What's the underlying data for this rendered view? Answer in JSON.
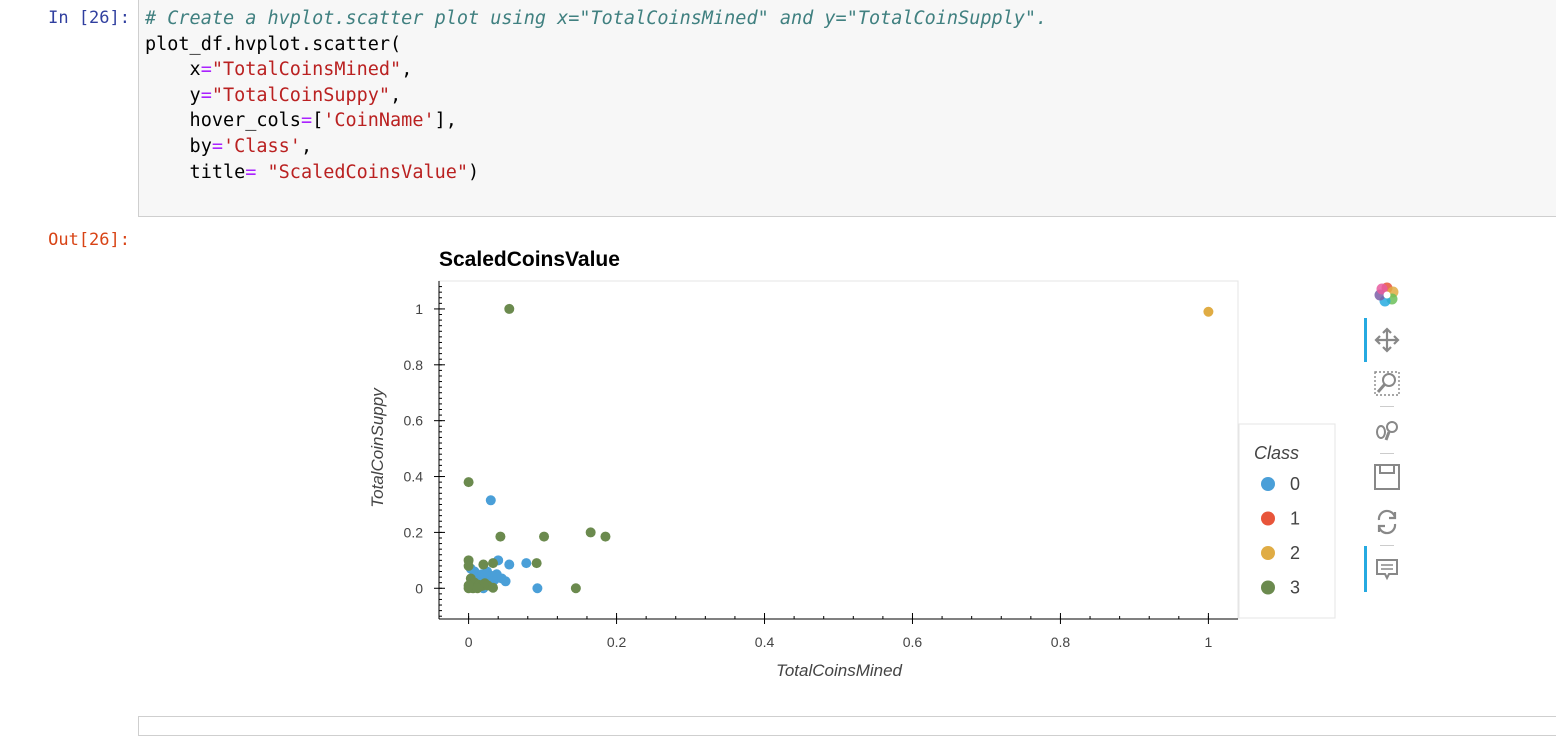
{
  "cell_in": {
    "prompt": "In [26]:",
    "code_lines": [
      "# Create a hvplot.scatter plot using x=\"TotalCoinsMined\" and y=\"TotalCoinSupply\".",
      "plot_df.hvplot.scatter(",
      "    x=\"TotalCoinsMined\",",
      "    y=\"TotalCoinSuppy\",",
      "    hover_cols=['CoinName'],",
      "    by='Class',",
      "    title= \"ScaledCoinsValue\")"
    ]
  },
  "cell_out": {
    "prompt": "Out[26]:"
  },
  "toolbar": {
    "tools": [
      "bokeh-logo-icon",
      "pan-icon",
      "box-zoom-icon",
      "wheel-zoom-icon",
      "save-icon",
      "reset-icon",
      "hover-icon"
    ]
  },
  "chart_data": {
    "type": "scatter",
    "title": "ScaledCoinsValue",
    "xlabel": "TotalCoinsMined",
    "ylabel": "TotalCoinSuppy",
    "xlim": [
      -0.04,
      1.04
    ],
    "ylim": [
      -0.11,
      1.1
    ],
    "xticks": [
      0,
      0.2,
      0.4,
      0.6,
      0.8,
      1
    ],
    "yticks": [
      0,
      0.2,
      0.4,
      0.6,
      0.8,
      1
    ],
    "xtick_labels": [
      "0",
      "0.2",
      "0.4",
      "0.6",
      "0.8",
      "1"
    ],
    "ytick_labels": [
      "0",
      "0.2",
      "0.4",
      "0.6",
      "0.8",
      "1"
    ],
    "legend_title": "Class",
    "legend_position": "right",
    "series": [
      {
        "name": "0",
        "color": "#4a9fd8",
        "points": [
          [
            0.03,
            0.315
          ],
          [
            0.04,
            0.1
          ],
          [
            0.055,
            0.085
          ],
          [
            0.078,
            0.09
          ],
          [
            0.05,
            0.025
          ],
          [
            0.093,
            0
          ],
          [
            0.003,
            0.07
          ],
          [
            0.008,
            0.06
          ],
          [
            0.012,
            0.04
          ],
          [
            0.018,
            0.05
          ],
          [
            0.022,
            0.03
          ],
          [
            0.025,
            0.06
          ],
          [
            0.03,
            0.045
          ],
          [
            0.035,
            0.03
          ],
          [
            0.038,
            0.05
          ],
          [
            0.045,
            0.035
          ],
          [
            0.015,
            0.005
          ],
          [
            0.02,
            0.0
          ],
          [
            0.028,
            0.01
          ]
        ]
      },
      {
        "name": "1",
        "color": "#e8553a",
        "points": []
      },
      {
        "name": "2",
        "color": "#e0ac44",
        "points": [
          [
            1.0,
            0.99
          ]
        ]
      },
      {
        "name": "3",
        "color": "#6b8a4e",
        "points": [
          [
            0.055,
            1.0
          ],
          [
            0.0,
            0.38
          ],
          [
            0.043,
            0.185
          ],
          [
            0.102,
            0.185
          ],
          [
            0.165,
            0.2
          ],
          [
            0.185,
            0.185
          ],
          [
            0.145,
            0.0
          ],
          [
            0.092,
            0.09
          ],
          [
            0.033,
            0.09
          ],
          [
            0.02,
            0.085
          ],
          [
            0.0,
            0.1
          ],
          [
            0.0,
            0.08
          ],
          [
            0.003,
            0.035
          ],
          [
            0.005,
            0.015
          ],
          [
            0.008,
            0.02
          ],
          [
            0.0,
            0.0
          ],
          [
            0.004,
            0.002
          ],
          [
            0.01,
            0.005
          ],
          [
            0.014,
            0.012
          ],
          [
            0.018,
            0.008
          ],
          [
            0.022,
            0.018
          ],
          [
            0.026,
            0.01
          ],
          [
            0.033,
            0.002
          ],
          [
            0.006,
            0.0
          ],
          [
            0.012,
            0.0
          ],
          [
            0.0,
            0.01
          ]
        ]
      }
    ]
  }
}
